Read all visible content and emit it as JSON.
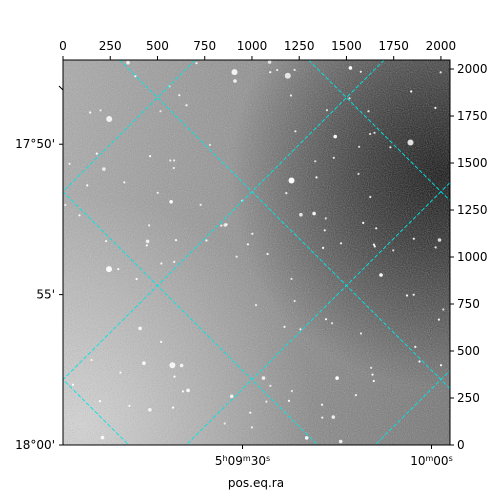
{
  "chart_data": {
    "type": "heatmap",
    "title": "",
    "xlabel": "pos.eq.ra",
    "ylabel": "",
    "pixel_axes": {
      "x_top": {
        "range": [
          0,
          2048
        ],
        "ticks": [
          0,
          250,
          500,
          750,
          1000,
          1250,
          1500,
          1750,
          2000
        ],
        "labels": [
          "0",
          "250",
          "500",
          "750",
          "1000",
          "1250",
          "1500",
          "1750",
          "2000"
        ]
      },
      "y_right": {
        "range": [
          0,
          2048
        ],
        "ticks": [
          0,
          250,
          500,
          750,
          1000,
          1250,
          1500,
          1750,
          2000
        ],
        "labels": [
          "0",
          "250",
          "500",
          "750",
          "1000",
          "1250",
          "1500",
          "1750",
          "2000"
        ]
      }
    },
    "world_axes": {
      "ra_bottom": {
        "ticks": [
          {
            "px": 950,
            "label_main": "5",
            "label_sup1": "h",
            "label_mid": "09",
            "label_sup2": "m",
            "label_tail": "30",
            "label_sup3": "s"
          },
          {
            "px": 1950,
            "label_main": "10",
            "label_sup1": "m",
            "label_mid": "00",
            "label_sup2": "s",
            "label_tail": "",
            "label_sup3": ""
          }
        ]
      },
      "dec_left": {
        "ticks": [
          {
            "py": 1600,
            "label": "17°50'"
          },
          {
            "py": 800,
            "label": "55'"
          },
          {
            "py": 0,
            "label": "18°00'"
          }
        ]
      }
    },
    "grid": true,
    "grid_color": "#00e5e5",
    "image": {
      "colormap": "gray",
      "background_level": 0.55,
      "dark_region": "right-top",
      "bright_region": "bottom-left"
    }
  }
}
